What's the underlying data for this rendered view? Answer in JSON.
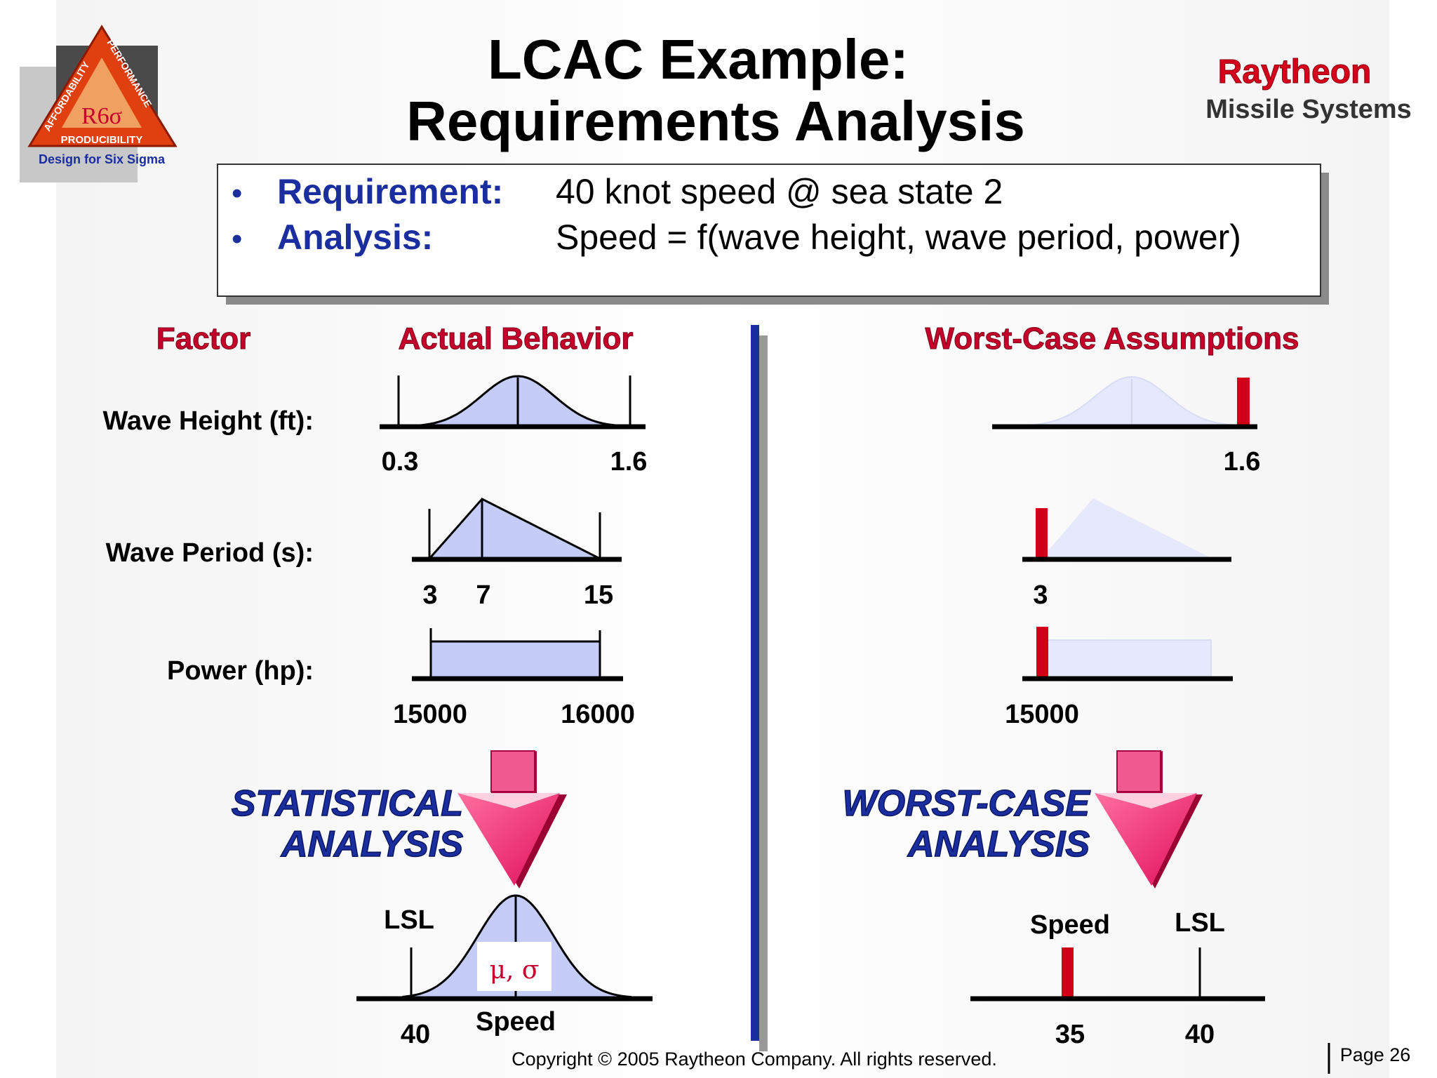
{
  "title": {
    "line1": "LCAC Example:",
    "line2": "Requirements Analysis"
  },
  "brand": {
    "name": "Raytheon",
    "division": "Missile Systems"
  },
  "logo": {
    "center_text": "R6σ",
    "left_text": "AFFORDABILITY",
    "right_text": "PERFORMANCE",
    "bottom_text": "PRODUCIBILITY",
    "caption": "Design for Six Sigma"
  },
  "requirements": [
    {
      "bullet": "•",
      "label": "Requirement:",
      "value": "40 knot speed @ sea state 2"
    },
    {
      "bullet": "•",
      "label": "Analysis:",
      "value": "Speed = f(wave height, wave period, power)"
    }
  ],
  "headers": {
    "factor": "Factor",
    "actual": "Actual Behavior",
    "worst": "Worst-Case Assumptions"
  },
  "factors": [
    {
      "label": "Wave Height (ft):",
      "distribution": "normal",
      "actual_ticks": [
        "0.3",
        "1.6"
      ],
      "worst_value": "1.6"
    },
    {
      "label": "Wave Period (s):",
      "distribution": "triangular",
      "actual_ticks": [
        "3",
        "7",
        "15"
      ],
      "worst_value": "3"
    },
    {
      "label": "Power (hp):",
      "distribution": "uniform",
      "actual_ticks": [
        "15000",
        "16000"
      ],
      "worst_value": "15000"
    }
  ],
  "statistical": {
    "label_line1": "STATISTICAL",
    "label_line2": "ANALYSIS",
    "lsl": "LSL",
    "lsl_value": "40",
    "axis_label": "Speed",
    "params": "μ, σ"
  },
  "worst_case": {
    "label_line1": "WORST-CASE",
    "label_line2": "ANALYSIS",
    "speed_label": "Speed",
    "lsl": "LSL",
    "speed_value": "35",
    "lsl_value": "40"
  },
  "footer": {
    "copyright": "Copyright © 2005 Raytheon Company. All rights reserved.",
    "page": "Page 26"
  },
  "colors": {
    "accent_blue": "#1a2ea0",
    "accent_red": "#c4002b",
    "worst_bar_red": "#d00018",
    "distribution_fill": "#c4ccf7",
    "arrow_pink": "#f0286a"
  }
}
